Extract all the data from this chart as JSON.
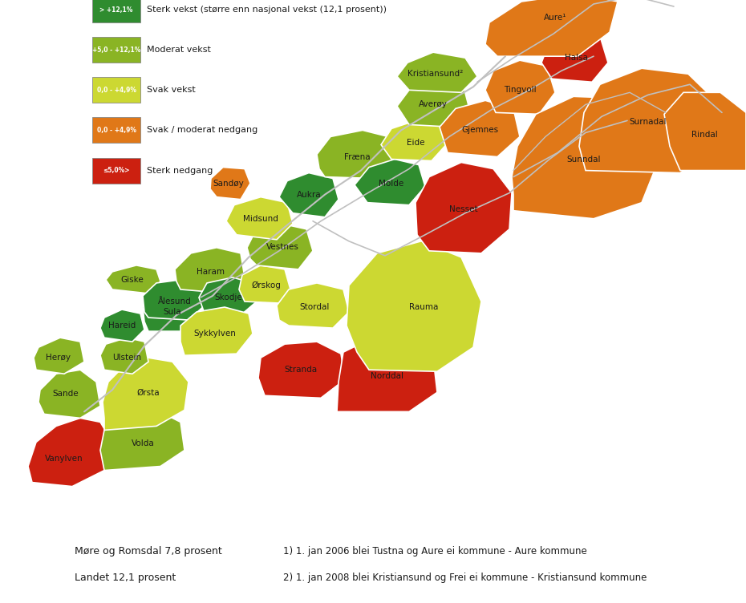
{
  "background_color": "#ffffff",
  "legend_ranges": [
    "> +12,1%",
    "+5,0 - +12,1%",
    "0,0 - +4,9%",
    "0,0 - +4,9%",
    "≤5,0%>"
  ],
  "legend_labels": [
    "Sterk vekst (større enn nasjonal vekst (12,1 prosent))",
    "Moderat vekst",
    "Svak vekst",
    "Svak / moderat nedgang",
    "Sterk nedgang"
  ],
  "legend_colors": [
    "#2f8c2f",
    "#8ab424",
    "#ccd832",
    "#e07818",
    "#cc2010"
  ],
  "footer_line1": "Møre og Romsdal 7,8 prosent",
  "footer_line2": "Landet 12,1 prosent",
  "footer_note1": "1) 1. jan 2006 blei Tustna og Aure ei kommune - Aure kommune",
  "footer_note2": "2) 1. jan 2008 blei Kristiansund og Frei ei kommune - Kristiansund kommune",
  "road_color": "#c8c8c8",
  "road_lw": 1.2,
  "label_fontsize": 7.5,
  "label_color": "#1a1a1a"
}
